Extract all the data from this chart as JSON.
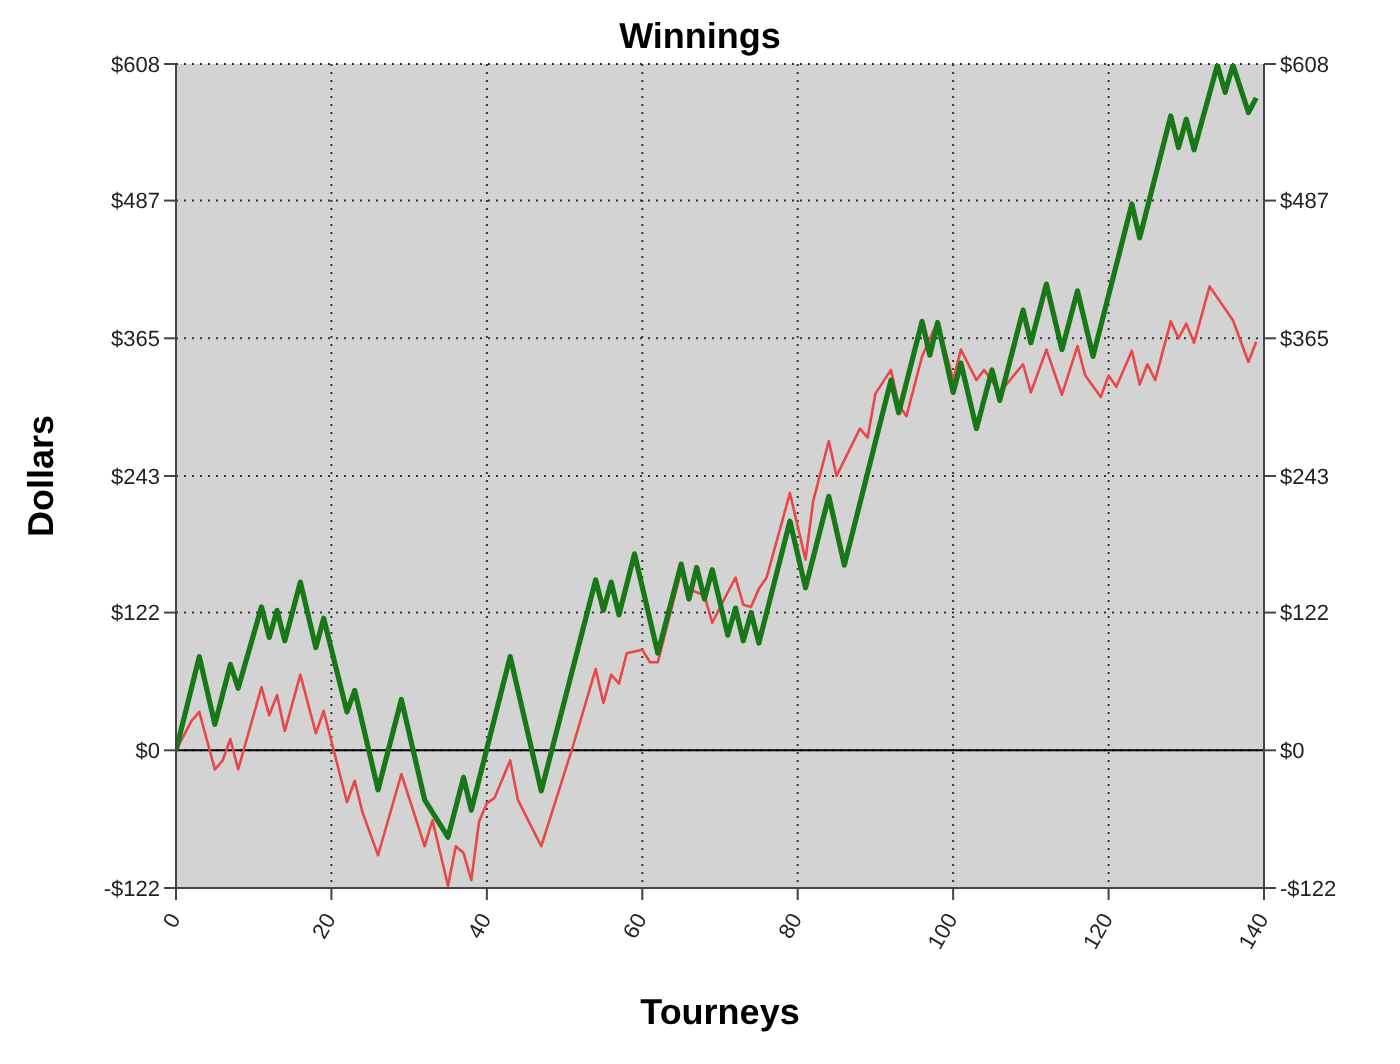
{
  "chart_data": {
    "type": "line",
    "title": "Winnings",
    "xlabel": "Tourneys",
    "ylabel": "Dollars",
    "xlim": [
      0,
      140
    ],
    "xticks": [
      0,
      20,
      40,
      60,
      80,
      100,
      120,
      140
    ],
    "ylim": [
      -122,
      608
    ],
    "yticks": [
      {
        "value": -122,
        "label": "-$122"
      },
      {
        "value": 0,
        "label": "$0"
      },
      {
        "value": 122,
        "label": "$122"
      },
      {
        "value": 243,
        "label": "$243"
      },
      {
        "value": 365,
        "label": "$365"
      },
      {
        "value": 487,
        "label": "$487"
      },
      {
        "value": 608,
        "label": "$608"
      }
    ],
    "y2lim": [
      -122,
      608
    ],
    "y2ticks": [
      {
        "value": -122,
        "label": "-$122"
      },
      {
        "value": 0,
        "label": "$0"
      },
      {
        "value": 122,
        "label": "$122"
      },
      {
        "value": 243,
        "label": "$243"
      },
      {
        "value": 365,
        "label": "$365"
      },
      {
        "value": 487,
        "label": "$487"
      },
      {
        "value": 608,
        "label": "$608"
      }
    ],
    "grid": true,
    "marker": "none",
    "line_style": "solid",
    "ref_lines": [
      {
        "axis": "y",
        "value": 0,
        "color": "#000000"
      }
    ],
    "series": [
      {
        "color": "#e84848",
        "x": [
          0,
          2,
          3,
          5,
          6,
          7,
          8,
          11,
          12,
          13,
          14,
          16,
          18,
          19,
          22,
          23,
          24,
          26,
          29,
          32,
          33,
          35,
          36,
          37,
          38,
          39,
          40,
          41,
          43,
          44,
          47,
          51,
          54,
          55,
          56,
          57,
          58,
          60,
          61,
          62,
          65,
          66,
          67,
          68,
          69,
          71,
          72,
          73,
          74,
          75,
          76,
          79,
          81,
          82,
          84,
          85,
          88,
          89,
          90,
          92,
          93,
          94,
          96,
          98,
          100,
          101,
          103,
          104,
          105,
          106,
          109,
          110,
          112,
          114,
          116,
          117,
          119,
          120,
          121,
          123,
          124,
          125,
          126,
          128,
          129,
          130,
          131,
          133,
          136,
          138,
          139
        ],
        "values": [
          0,
          26,
          34,
          -17,
          -9,
          10,
          -17,
          56,
          31,
          49,
          17,
          67,
          15,
          35,
          -46,
          -27,
          -55,
          -93,
          -21,
          -85,
          -62,
          -120,
          -85,
          -91,
          -115,
          -63,
          -47,
          -42,
          -9,
          -44,
          -85,
          2,
          72,
          42,
          67,
          59,
          86,
          89,
          78,
          78,
          159,
          143,
          140,
          137,
          113,
          140,
          153,
          129,
          127,
          143,
          153,
          228,
          169,
          221,
          274,
          243,
          285,
          277,
          316,
          337,
          306,
          296,
          349,
          380,
          328,
          355,
          328,
          337,
          327,
          317,
          342,
          317,
          355,
          315,
          358,
          332,
          313,
          332,
          322,
          354,
          324,
          342,
          328,
          380,
          365,
          378,
          361,
          411,
          381,
          344,
          362
        ]
      },
      {
        "color": "#187818",
        "x": [
          0,
          3,
          5,
          7,
          8,
          11,
          12,
          13,
          14,
          16,
          18,
          19,
          22,
          23,
          26,
          29,
          32,
          35,
          37,
          38,
          43,
          47,
          54,
          55,
          56,
          57,
          59,
          62,
          65,
          66,
          67,
          68,
          69,
          71,
          72,
          73,
          74,
          75,
          79,
          81,
          84,
          86,
          92,
          93,
          96,
          97,
          98,
          100,
          101,
          103,
          105,
          106,
          109,
          110,
          112,
          114,
          116,
          118,
          123,
          124,
          128,
          129,
          130,
          131,
          134,
          135,
          136,
          138,
          139
        ],
        "values": [
          0,
          83,
          23,
          76,
          55,
          127,
          100,
          124,
          97,
          149,
          91,
          117,
          34,
          53,
          -35,
          45,
          -44,
          -77,
          -24,
          -53,
          83,
          -36,
          151,
          124,
          149,
          120,
          174,
          86,
          165,
          134,
          162,
          134,
          160,
          102,
          126,
          97,
          122,
          95,
          203,
          144,
          225,
          164,
          328,
          299,
          380,
          350,
          379,
          317,
          343,
          285,
          337,
          310,
          390,
          361,
          413,
          355,
          407,
          349,
          484,
          454,
          562,
          534,
          559,
          532,
          607,
          583,
          607,
          565,
          578
        ]
      }
    ]
  }
}
